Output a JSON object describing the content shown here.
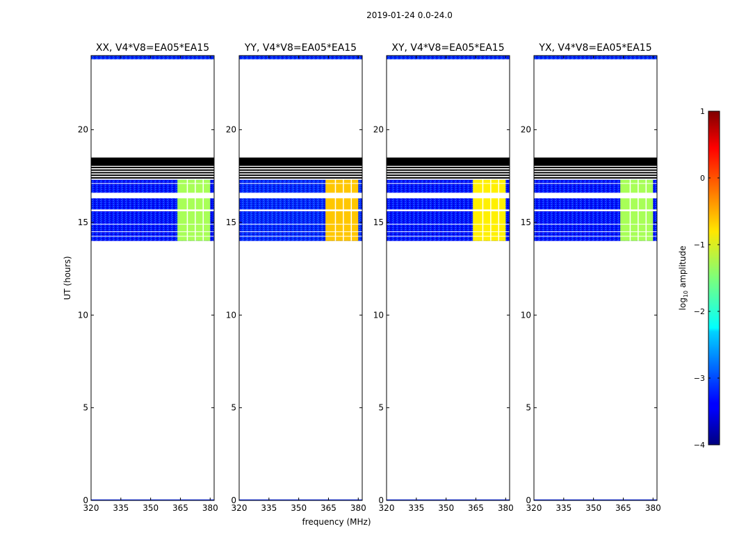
{
  "suptitle": "2019-01-24 0.0-24.0",
  "xlabel": "frequency (MHz)",
  "ylabel": "UT (hours)",
  "colorbar": {
    "label_prefix": "log",
    "label_sub": "10",
    "label_suffix": " amplitude",
    "range": [
      -4,
      1
    ],
    "ticks": [
      1,
      0,
      -1,
      -2,
      -3,
      -4
    ],
    "tick_labels": [
      "1",
      "0",
      "−1",
      "−2",
      "−3",
      "−4"
    ],
    "colormap": "jet"
  },
  "chart_data": [
    {
      "type": "heatmap",
      "title": "XX, V4*V8=EA05*EA15",
      "xlim": [
        320,
        382
      ],
      "ylim": [
        0,
        24
      ],
      "x_ticks": [
        320,
        335,
        350,
        365,
        380
      ],
      "y_ticks": [
        0,
        5,
        10,
        15,
        20
      ],
      "data_blocks": [
        {
          "freq_range": [
            320,
            382
          ],
          "ut_range": [
            14.0,
            17.3
          ],
          "log10_amplitude": -3.3
        },
        {
          "freq_range": [
            363.5,
            380
          ],
          "ut_range": [
            14.0,
            17.3
          ],
          "log10_amplitude": -1.3
        },
        {
          "freq_range": [
            320,
            382
          ],
          "ut_range": [
            23.8,
            24.0
          ],
          "log10_amplitude": -3.2
        }
      ],
      "flagged_ut_range": [
        17.5,
        18.5
      ]
    },
    {
      "type": "heatmap",
      "title": "YY, V4*V8=EA05*EA15",
      "xlim": [
        320,
        382
      ],
      "ylim": [
        0,
        24
      ],
      "x_ticks": [
        320,
        335,
        350,
        365,
        380
      ],
      "y_ticks": [
        0,
        5,
        10,
        15,
        20
      ],
      "data_blocks": [
        {
          "freq_range": [
            320,
            382
          ],
          "ut_range": [
            14.0,
            17.3
          ],
          "log10_amplitude": -3.2
        },
        {
          "freq_range": [
            363.5,
            380
          ],
          "ut_range": [
            14.0,
            17.3
          ],
          "log10_amplitude": -0.6
        },
        {
          "freq_range": [
            320,
            382
          ],
          "ut_range": [
            23.8,
            24.0
          ],
          "log10_amplitude": -3.2
        }
      ],
      "flagged_ut_range": [
        17.5,
        18.5
      ]
    },
    {
      "type": "heatmap",
      "title": "XY, V4*V8=EA05*EA15",
      "xlim": [
        320,
        382
      ],
      "ylim": [
        0,
        24
      ],
      "x_ticks": [
        320,
        335,
        350,
        365,
        380
      ],
      "y_ticks": [
        0,
        5,
        10,
        15,
        20
      ],
      "data_blocks": [
        {
          "freq_range": [
            320,
            382
          ],
          "ut_range": [
            14.0,
            17.3
          ],
          "log10_amplitude": -3.3
        },
        {
          "freq_range": [
            363.5,
            380
          ],
          "ut_range": [
            14.0,
            17.3
          ],
          "log10_amplitude": -0.8
        },
        {
          "freq_range": [
            320,
            382
          ],
          "ut_range": [
            23.8,
            24.0
          ],
          "log10_amplitude": -3.2
        }
      ],
      "flagged_ut_range": [
        17.5,
        18.5
      ]
    },
    {
      "type": "heatmap",
      "title": "YX, V4*V8=EA05*EA15",
      "xlim": [
        320,
        382
      ],
      "ylim": [
        0,
        24
      ],
      "x_ticks": [
        320,
        335,
        350,
        365,
        380
      ],
      "y_ticks": [
        0,
        5,
        10,
        15,
        20
      ],
      "data_blocks": [
        {
          "freq_range": [
            320,
            382
          ],
          "ut_range": [
            14.0,
            17.3
          ],
          "log10_amplitude": -3.3
        },
        {
          "freq_range": [
            363.5,
            380
          ],
          "ut_range": [
            14.0,
            17.3
          ],
          "log10_amplitude": -1.3
        },
        {
          "freq_range": [
            320,
            382
          ],
          "ut_range": [
            23.8,
            24.0
          ],
          "log10_amplitude": -3.2
        }
      ],
      "flagged_ut_range": [
        17.5,
        18.5
      ]
    }
  ]
}
